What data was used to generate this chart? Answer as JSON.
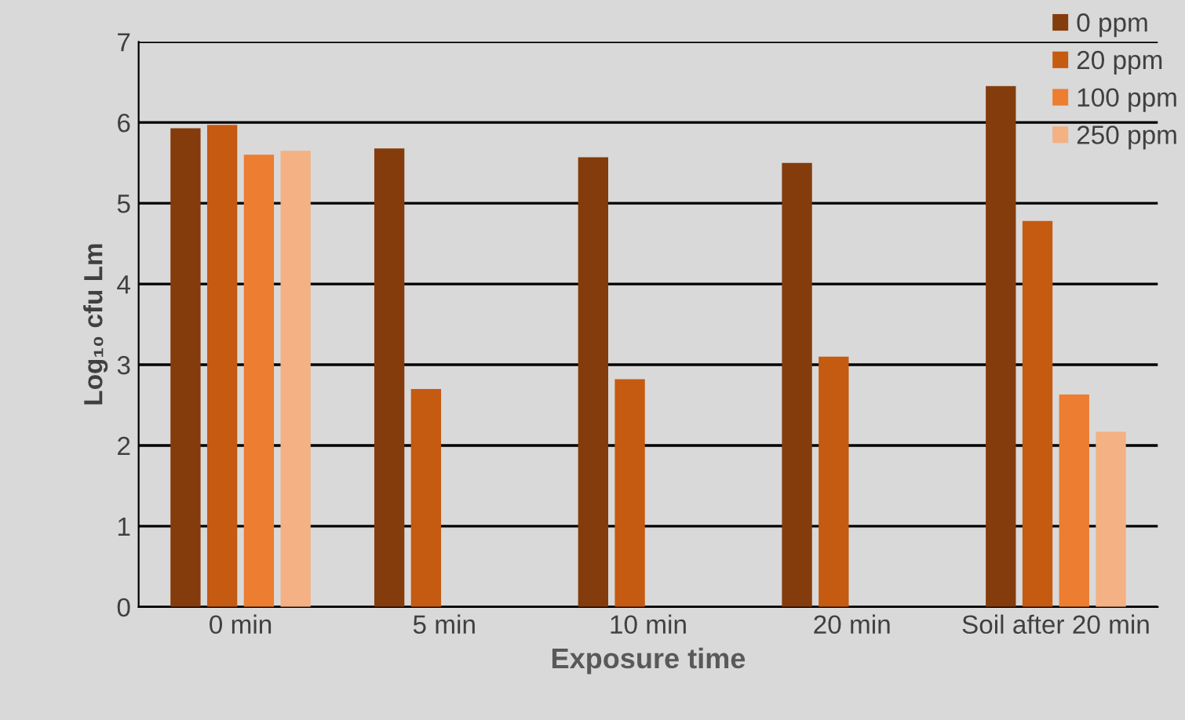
{
  "chart_data": {
    "type": "bar",
    "xlabel": "Exposure time",
    "ylabel": "Log₁₀ cfu Lm",
    "categories": [
      "0 min",
      "5 min",
      "10 min",
      "20 min",
      "Soil after 20 min"
    ],
    "series": [
      {
        "name": "0 ppm",
        "color": "#843c0c",
        "values": [
          5.93,
          5.68,
          5.57,
          5.5,
          6.45
        ]
      },
      {
        "name": "20 ppm",
        "color": "#c55a11",
        "values": [
          5.97,
          2.7,
          2.82,
          3.1,
          4.78
        ]
      },
      {
        "name": "100 ppm",
        "color": "#ed7d31",
        "values": [
          5.6,
          null,
          null,
          null,
          2.63
        ]
      },
      {
        "name": "250 ppm",
        "color": "#f4b183",
        "values": [
          5.65,
          null,
          null,
          null,
          2.17
        ]
      }
    ],
    "ylim": [
      0,
      7
    ],
    "yticks": [
      0,
      1,
      2,
      3,
      4,
      5,
      6,
      7
    ],
    "grid": "y",
    "legend": "top right"
  }
}
